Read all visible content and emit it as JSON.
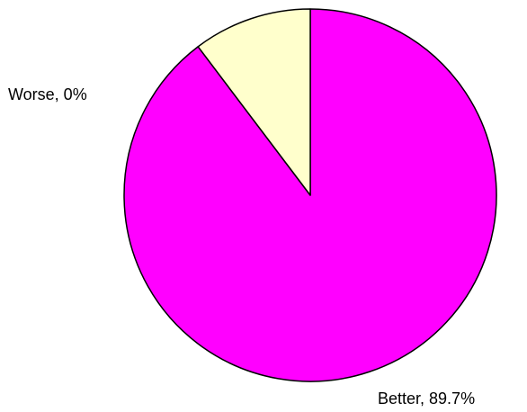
{
  "chart_data": {
    "type": "pie",
    "title": "",
    "slices": [
      {
        "label": "Better, 89.7%",
        "value": 89.7,
        "color": "#ff00ff"
      },
      {
        "label": "Worse, 0%",
        "value": 0,
        "color": "#ffffcc"
      },
      {
        "label": "",
        "value": 10.3,
        "color": "#ffffcc"
      }
    ]
  }
}
